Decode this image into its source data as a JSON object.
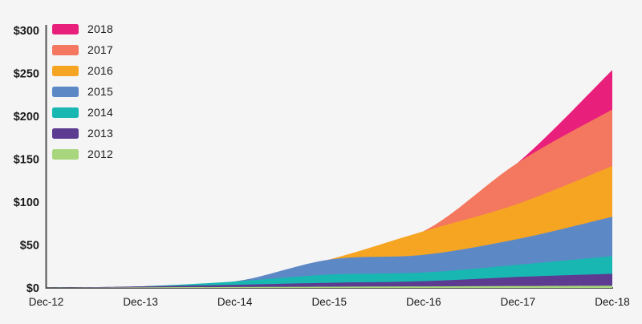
{
  "style": {
    "background": "#F5F5F6",
    "axis_color": "#515154",
    "text_color": "#1A1A1A"
  },
  "chart_data": {
    "type": "area",
    "stacked": true,
    "grid": false,
    "categories": [
      "Dec-12",
      "Dec-13",
      "Dec-14",
      "Dec-15",
      "Dec-16",
      "Dec-17",
      "Dec-18"
    ],
    "series": [
      {
        "name": "2012",
        "color": "#A7D67D",
        "values": [
          0,
          0.6,
          1.0,
          1.4,
          1.8,
          2.2,
          2.6
        ]
      },
      {
        "name": "2013",
        "color": "#5C3B91",
        "values": [
          0,
          1.2,
          2.6,
          4.6,
          6.0,
          10.6,
          13.9
        ]
      },
      {
        "name": "2014",
        "color": "#18B7B1",
        "values": [
          0,
          0,
          3.9,
          9.5,
          10.2,
          14.2,
          20.5
        ]
      },
      {
        "name": "2015",
        "color": "#5C89C6",
        "values": [
          0,
          0,
          0,
          17.5,
          20.5,
          30.0,
          46.0
        ]
      },
      {
        "name": "2016",
        "color": "#F6A522",
        "values": [
          0,
          0,
          0,
          0,
          27.5,
          41.0,
          59.0
        ]
      },
      {
        "name": "2017",
        "color": "#F4775F",
        "values": [
          0,
          0,
          0,
          0,
          0,
          48.0,
          66.0
        ]
      },
      {
        "name": "2018",
        "color": "#E8207B",
        "values": [
          0,
          0,
          0,
          0,
          0,
          0,
          46.0
        ]
      }
    ],
    "totals_by_category": [
      0,
      1.8,
      7.5,
      33.0,
      66.0,
      146.0,
      254.0
    ],
    "legend": {
      "position": "top-left",
      "order": [
        "2018",
        "2017",
        "2016",
        "2015",
        "2014",
        "2013",
        "2012"
      ]
    },
    "x_axis": {
      "ticks": [
        "Dec-12",
        "Dec-13",
        "Dec-14",
        "Dec-15",
        "Dec-16",
        "Dec-17",
        "Dec-18"
      ]
    },
    "y_axis": {
      "prefix": "$",
      "min": 0,
      "max": 300,
      "tick_step": 50,
      "ticks": [
        "$0",
        "$50",
        "$100",
        "$150",
        "$200",
        "$250",
        "$300"
      ]
    }
  }
}
